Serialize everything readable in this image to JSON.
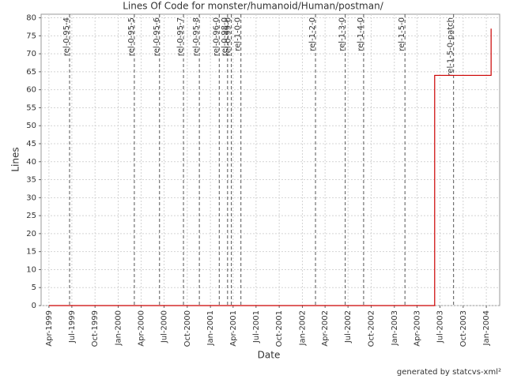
{
  "chart_data": {
    "type": "line",
    "drawstyle": "steps-post",
    "title": "Lines Of Code for monster/humanoid/Human/postman/",
    "x_label": "Date",
    "y_label": "Lines",
    "footer": "generated by statcvs-xml²",
    "x": [
      "1999-04-01",
      "2003-06-10",
      "2004-01-20"
    ],
    "values": [
      0,
      64,
      77
    ],
    "color": "#cc0000",
    "markers": [
      {
        "label": "rel-0-95-4",
        "x": "1999-06-22"
      },
      {
        "label": "rel-0-95-5",
        "x": "2000-03-05"
      },
      {
        "label": "rel-0-95-6",
        "x": "2000-06-13"
      },
      {
        "label": "rel-0-95-7",
        "x": "2000-09-16"
      },
      {
        "label": "rel-0-95-8",
        "x": "2000-11-18"
      },
      {
        "label": "rel-0-96-0",
        "x": "2001-02-05"
      },
      {
        "label": "rel-0-98-0",
        "x": "2001-03-10"
      },
      {
        "label": "rel-0-99-0",
        "x": "2001-03-25"
      },
      {
        "label": "rel-1-0-0",
        "x": "2001-05-02"
      },
      {
        "label": "rel-1-2-0",
        "x": "2002-02-22"
      },
      {
        "label": "rel-1-3-0",
        "x": "2002-06-20"
      },
      {
        "label": "rel-1-4-0",
        "x": "2002-09-01"
      },
      {
        "label": "rel-1-5-0",
        "x": "2003-02-12"
      },
      {
        "label": "rel-1-5-0-patch",
        "x": "2003-08-24"
      }
    ],
    "marker_color": "#555555",
    "xlim": [
      "1999-03-01",
      "2004-02-23"
    ],
    "xticks": [
      {
        "value": "1999-04-01",
        "label": "Apr-1999"
      },
      {
        "value": "1999-07-01",
        "label": "Jul-1999"
      },
      {
        "value": "1999-10-01",
        "label": "Oct-1999"
      },
      {
        "value": "2000-01-01",
        "label": "Jan-2000"
      },
      {
        "value": "2000-04-01",
        "label": "Apr-2000"
      },
      {
        "value": "2000-07-01",
        "label": "Jul-2000"
      },
      {
        "value": "2000-10-01",
        "label": "Oct-2000"
      },
      {
        "value": "2001-01-01",
        "label": "Jan-2001"
      },
      {
        "value": "2001-04-01",
        "label": "Apr-2001"
      },
      {
        "value": "2001-07-01",
        "label": "Jul-2001"
      },
      {
        "value": "2001-10-01",
        "label": "Oct-2001"
      },
      {
        "value": "2002-01-01",
        "label": "Jan-2002"
      },
      {
        "value": "2002-04-01",
        "label": "Apr-2002"
      },
      {
        "value": "2002-07-01",
        "label": "Jul-2002"
      },
      {
        "value": "2002-10-01",
        "label": "Oct-2002"
      },
      {
        "value": "2003-01-01",
        "label": "Jan-2003"
      },
      {
        "value": "2003-04-01",
        "label": "Apr-2003"
      },
      {
        "value": "2003-07-01",
        "label": "Jul-2003"
      },
      {
        "value": "2003-10-01",
        "label": "Oct-2003"
      },
      {
        "value": "2004-01-01",
        "label": "Jan-2004"
      }
    ],
    "ylim": [
      0,
      81
    ],
    "yticks": [
      0,
      5,
      10,
      15,
      20,
      25,
      30,
      35,
      40,
      45,
      50,
      55,
      60,
      65,
      70,
      75,
      80
    ],
    "grid": true
  }
}
